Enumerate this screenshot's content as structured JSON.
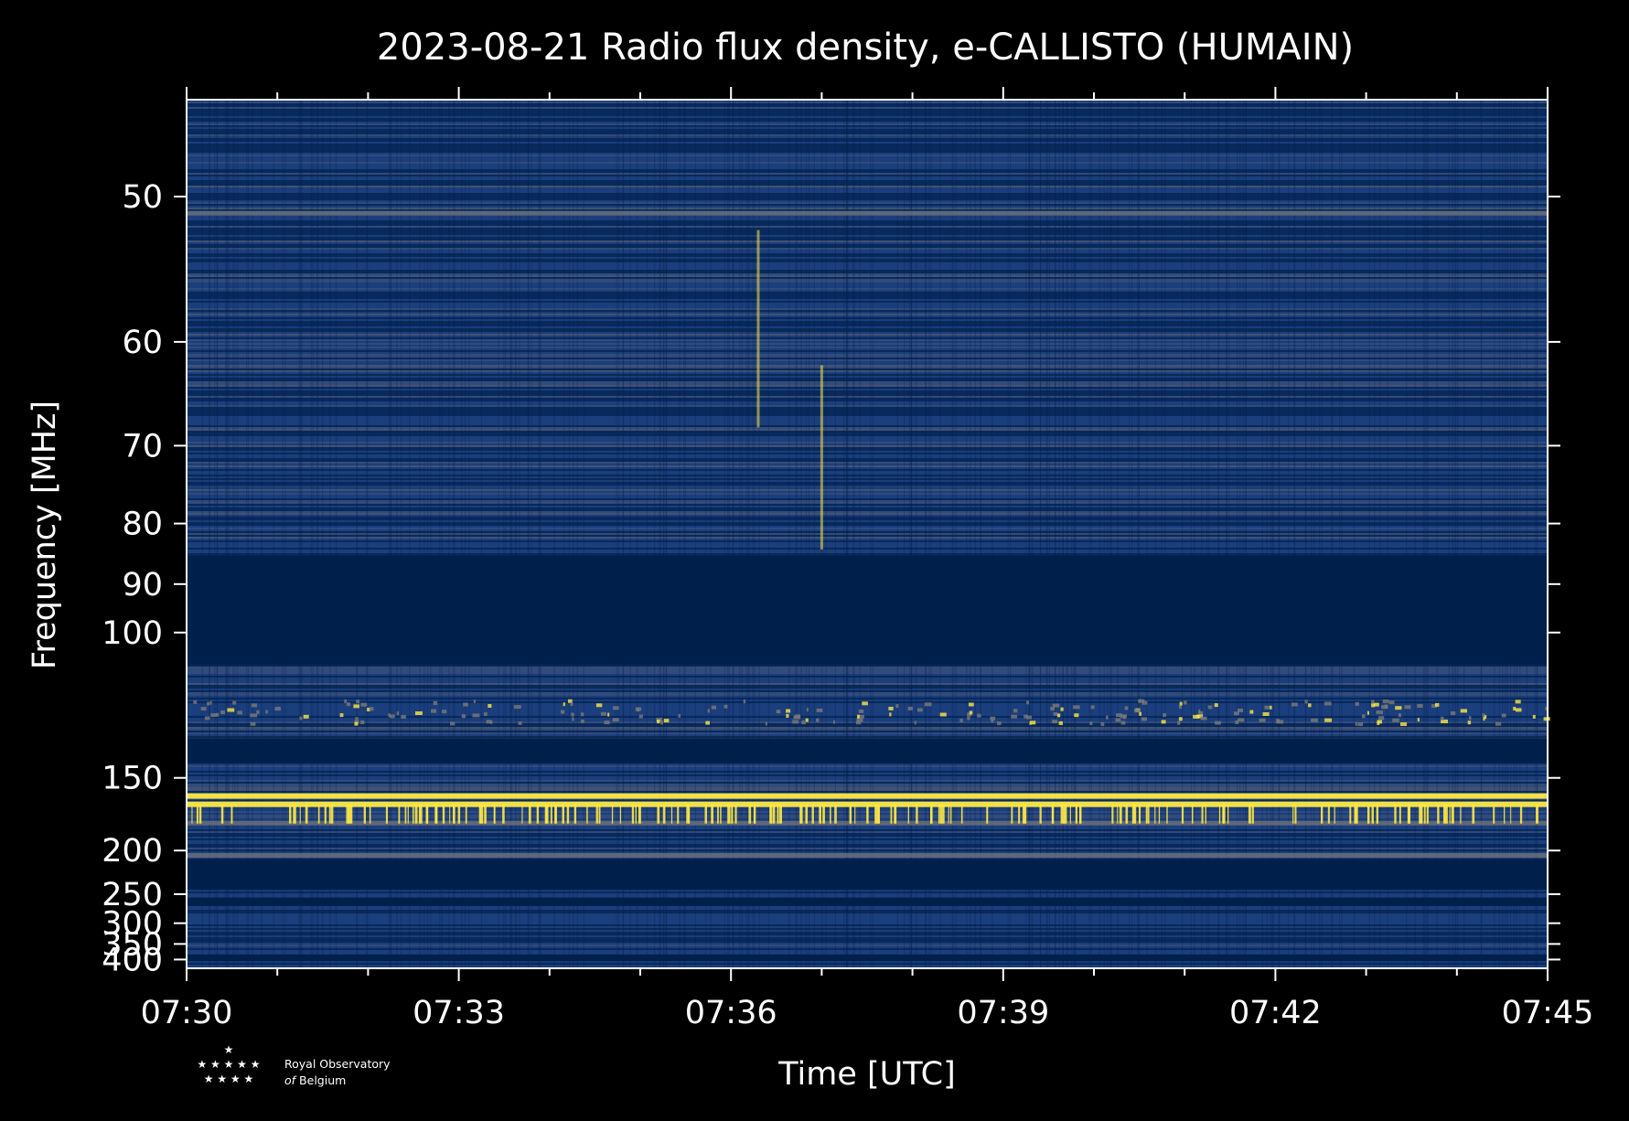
{
  "chart_data": {
    "type": "heatmap",
    "title": "2023-08-21 Radio flux density, e-CALLISTO (HUMAIN)",
    "xlabel": "Time [UTC]",
    "ylabel": "Frequency [MHz]",
    "x_tick_labels": [
      "07:30",
      "07:33",
      "07:36",
      "07:39",
      "07:42",
      "07:45"
    ],
    "x_ticks_minutes": [
      0,
      3,
      6,
      9,
      12,
      15
    ],
    "xlim_minutes": [
      0,
      15
    ],
    "y_scale": "reciprocal",
    "y_tick_labels": [
      "50",
      "60",
      "70",
      "80",
      "90",
      "100",
      "150",
      "200",
      "250",
      "300",
      "350",
      "400"
    ],
    "y_ticks": [
      50,
      60,
      70,
      80,
      90,
      100,
      150,
      200,
      250,
      300,
      350,
      400
    ],
    "ylim": [
      45,
      435
    ],
    "colors": {
      "background": "#000000",
      "low": "#00204c",
      "mid": "#7c7b78",
      "high": "#ffe945"
    },
    "blank_bands_mhz": [
      [
        85,
        108
      ],
      [
        132,
        143
      ],
      [
        208,
        244
      ],
      [
        255,
        268
      ],
      [
        382,
        406
      ]
    ],
    "bright_lines_mhz": [
      51,
      160,
      165,
      178,
      205
    ],
    "burst_features": [
      {
        "time_minutes": 6.3,
        "f_low": 52,
        "f_high": 68
      },
      {
        "time_minutes": 7.0,
        "f_low": 62,
        "f_high": 84
      }
    ]
  },
  "logo": {
    "stars_row1": "★",
    "stars_row2": "★ ★ ★ ★ ★",
    "stars_row3": "★ ★ ★ ★",
    "line1": "Royal Observatory",
    "line2_a": "of",
    "line2_b": "Belgium"
  }
}
